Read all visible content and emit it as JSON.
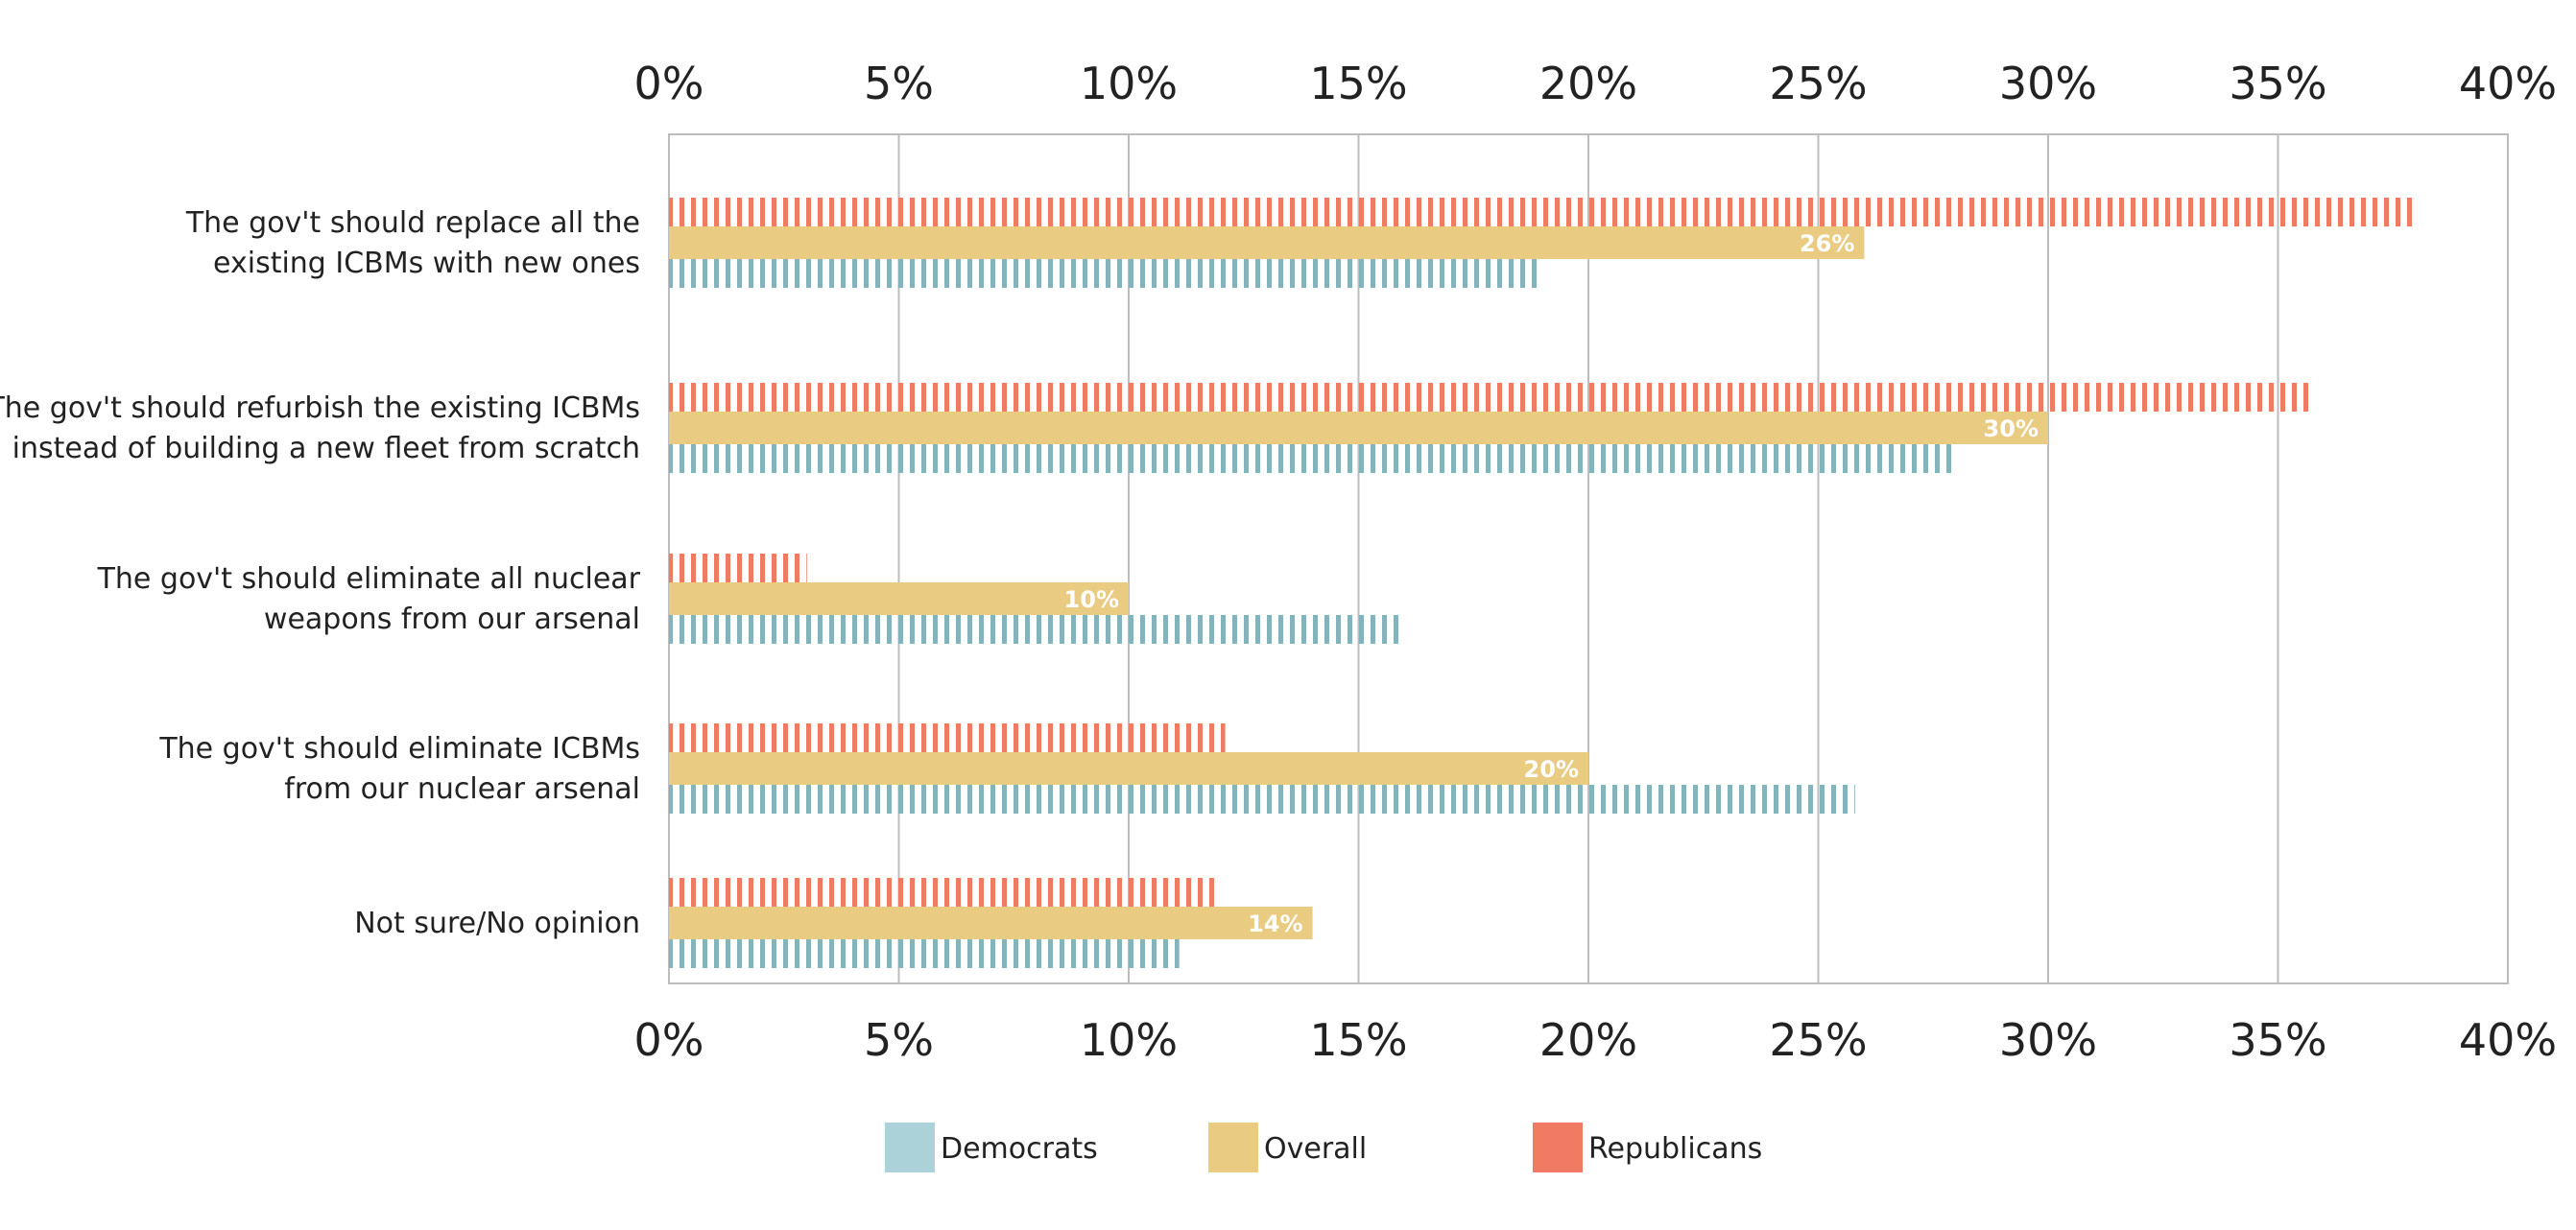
{
  "chart_data": {
    "type": "bar",
    "orientation": "horizontal",
    "title": "",
    "xlabel": "",
    "ylabel": "",
    "xlim": [
      0,
      40
    ],
    "x_ticks": [
      "0%",
      "5%",
      "10%",
      "15%",
      "20%",
      "25%",
      "30%",
      "35%",
      "40%"
    ],
    "x_tick_values": [
      0,
      5,
      10,
      15,
      20,
      25,
      30,
      35,
      40
    ],
    "grid": true,
    "legend_position": "bottom-center",
    "categories": [
      [
        "The gov't should replace all the",
        "existing ICBMs with new ones"
      ],
      [
        "The gov't should refurbish the existing ICBMs",
        "instead of building a new fleet from scratch"
      ],
      [
        "The gov't should eliminate all nuclear",
        "weapons from our arsenal"
      ],
      [
        "The gov't should eliminate ICBMs",
        "from our nuclear arsenal"
      ],
      [
        "Not sure/No opinion"
      ]
    ],
    "series": [
      {
        "name": "Republicans",
        "color": "#F07A62",
        "pattern": "vertical-stripes",
        "values": [
          38,
          35.8,
          3,
          12.1,
          12
        ]
      },
      {
        "name": "Overall",
        "color": "#EACB82",
        "pattern": "solid",
        "values": [
          26,
          30,
          10,
          20,
          14
        ],
        "data_labels": [
          "26%",
          "30%",
          "10%",
          "20%",
          "14%"
        ]
      },
      {
        "name": "Democrats",
        "color": "#85B3BD",
        "pattern": "vertical-stripes",
        "values": [
          18.9,
          28,
          15.9,
          25.8,
          11.1
        ]
      }
    ],
    "legend": [
      {
        "name": "Democrats",
        "color": "#ABD2D9"
      },
      {
        "name": "Overall",
        "color": "#EACB82"
      },
      {
        "name": "Republicans",
        "color": "#F07A62"
      }
    ]
  }
}
